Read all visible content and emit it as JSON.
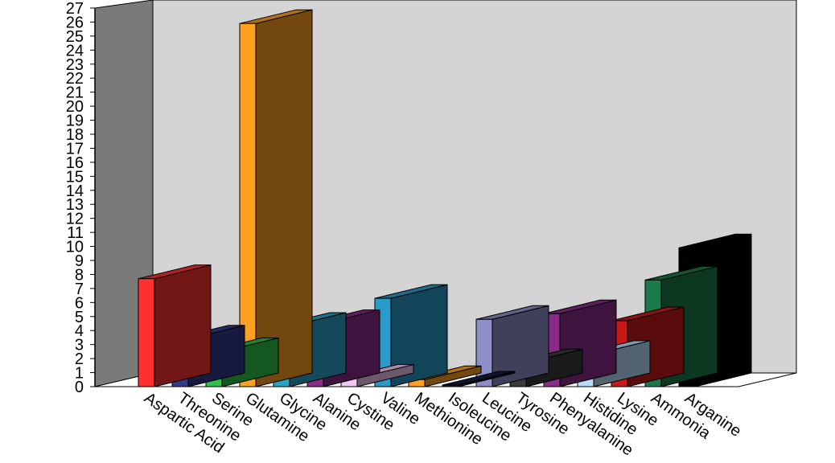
{
  "chart_data": {
    "type": "bar",
    "title": "",
    "xlabel": "",
    "ylabel": "",
    "ylim": [
      0,
      27
    ],
    "y_ticks": [
      "0",
      "1",
      "2",
      "3",
      "4",
      "5",
      "6",
      "7",
      "8",
      "9",
      "10",
      "11",
      "12",
      "13",
      "14",
      "15",
      "16",
      "17",
      "18",
      "19",
      "20",
      "21",
      "22",
      "23",
      "24",
      "25",
      "26",
      "27"
    ],
    "categories": [
      "Aspartic Acid",
      "Threonine",
      "Serine",
      "Glutamine",
      "Glycine",
      "Alanine",
      "Cystine",
      "Valine",
      "Methionine",
      "Isoleucine",
      "Leucine",
      "Tyrosine",
      "Phenyalanine",
      "Histidine",
      "Lysine",
      "Ammonia",
      "Arganine"
    ],
    "values": [
      7.7,
      3.4,
      2.5,
      25.9,
      4.3,
      4.5,
      0.6,
      6.3,
      0.5,
      0.1,
      4.8,
      1.7,
      5.2,
      2.3,
      4.7,
      7.6,
      9.9
    ],
    "colors": [
      "#ff3030",
      "#333a8a",
      "#2ec24a",
      "#ffa020",
      "#2ba2c8",
      "#8a2a8a",
      "#f0c8f0",
      "#2a9ac8",
      "#ffa020",
      "#151c42",
      "#8e8ec8",
      "#3a3a3a",
      "#8a2a8a",
      "#b8dcf8",
      "#c81818",
      "#1a7a4a",
      "#000000"
    ],
    "wall_color": "#d4d4d4",
    "side_wall_color": "#7a7a7a",
    "grid": false,
    "legend": "none"
  }
}
